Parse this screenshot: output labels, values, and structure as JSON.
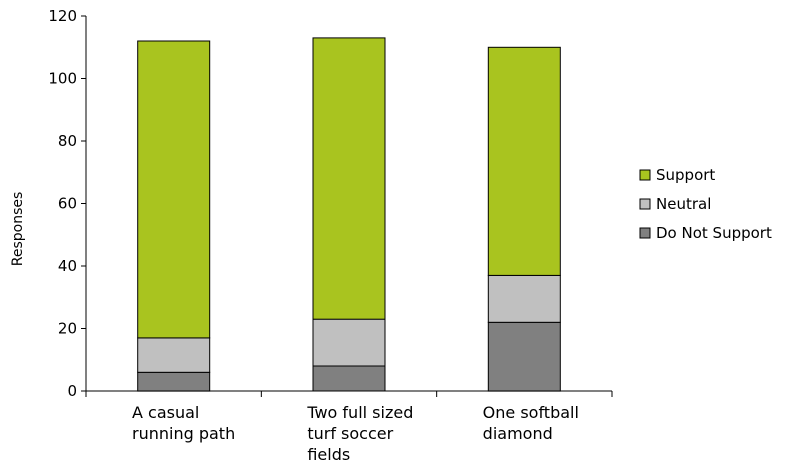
{
  "chart_data": {
    "type": "bar",
    "stacked": true,
    "title": "",
    "xlabel": "",
    "ylabel": "Responses",
    "ylim": [
      0,
      120
    ],
    "yticks": [
      0,
      20,
      40,
      60,
      80,
      100,
      120
    ],
    "categories": [
      [
        "A casual",
        "running path"
      ],
      [
        "Two full sized",
        "turf soccer",
        "fields"
      ],
      [
        "One softball",
        "diamond"
      ]
    ],
    "series": [
      {
        "name": "Do Not Support",
        "color": "#808080",
        "values": [
          6,
          8,
          22
        ]
      },
      {
        "name": "Neutral",
        "color": "#c0c0c0",
        "values": [
          11,
          15,
          15
        ]
      },
      {
        "name": "Support",
        "color": "#a9c41f",
        "values": [
          95,
          90,
          73
        ]
      }
    ],
    "legend": {
      "position": "right",
      "order": [
        "Support",
        "Neutral",
        "Do Not Support"
      ]
    },
    "grid": false
  }
}
